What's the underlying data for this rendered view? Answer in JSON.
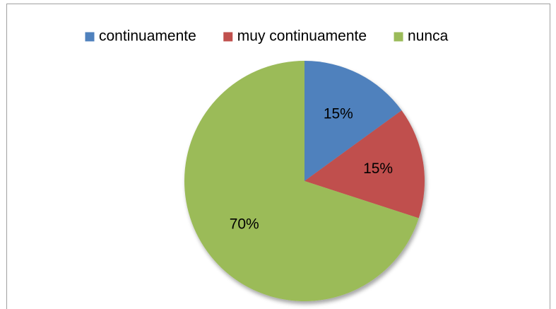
{
  "chart_data": {
    "type": "pie",
    "categories": [
      "continuamente",
      "muy continuamente",
      "nunca"
    ],
    "values": [
      15,
      15,
      70
    ],
    "value_labels": [
      "15%",
      "15%",
      "70%"
    ],
    "colors": [
      "#4f81bd",
      "#c0504d",
      "#9bbb59"
    ],
    "legend": "top"
  }
}
